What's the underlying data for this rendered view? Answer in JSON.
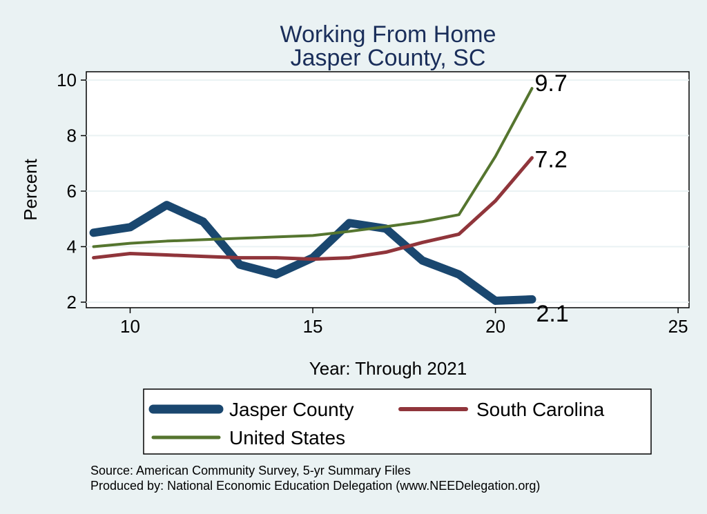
{
  "chart_data": {
    "type": "line",
    "title": [
      "Working From Home",
      "Jasper County, SC"
    ],
    "xlabel": "Year: Through 2021",
    "ylabel": "Percent",
    "xlim": [
      8.8,
      25.3
    ],
    "ylim": [
      1.8,
      10.3
    ],
    "xticks": [
      10,
      15,
      20,
      25
    ],
    "yticks": [
      2,
      4,
      6,
      8,
      10
    ],
    "grid": true,
    "legend_position": "bottom",
    "series": [
      {
        "name": "Jasper County",
        "color": "#1a476f",
        "x": [
          9,
          10,
          11,
          12,
          13,
          14,
          15,
          16,
          17,
          18,
          19,
          20,
          21
        ],
        "y": [
          4.5,
          4.7,
          5.5,
          4.9,
          3.35,
          3.0,
          3.6,
          4.85,
          4.65,
          3.5,
          3.0,
          2.05,
          2.1
        ],
        "end_label": "2.1"
      },
      {
        "name": "South Carolina",
        "color": "#90353b",
        "x": [
          9,
          10,
          11,
          12,
          13,
          14,
          15,
          16,
          17,
          18,
          19,
          20,
          21
        ],
        "y": [
          3.6,
          3.75,
          3.7,
          3.65,
          3.6,
          3.6,
          3.55,
          3.6,
          3.8,
          4.15,
          4.45,
          5.65,
          7.2
        ],
        "end_label": "7.2"
      },
      {
        "name": "United States",
        "color": "#55752f",
        "x": [
          9,
          10,
          11,
          12,
          13,
          14,
          15,
          16,
          17,
          18,
          19,
          20,
          21
        ],
        "y": [
          4.0,
          4.12,
          4.2,
          4.25,
          4.3,
          4.35,
          4.4,
          4.55,
          4.72,
          4.9,
          5.15,
          7.25,
          9.7
        ],
        "end_label": "9.7"
      }
    ],
    "notes": [
      "Source: American Community Survey, 5-yr Summary Files",
      "Produced by: National Economic Education Delegation (www.NEEDelegation.org)"
    ]
  }
}
